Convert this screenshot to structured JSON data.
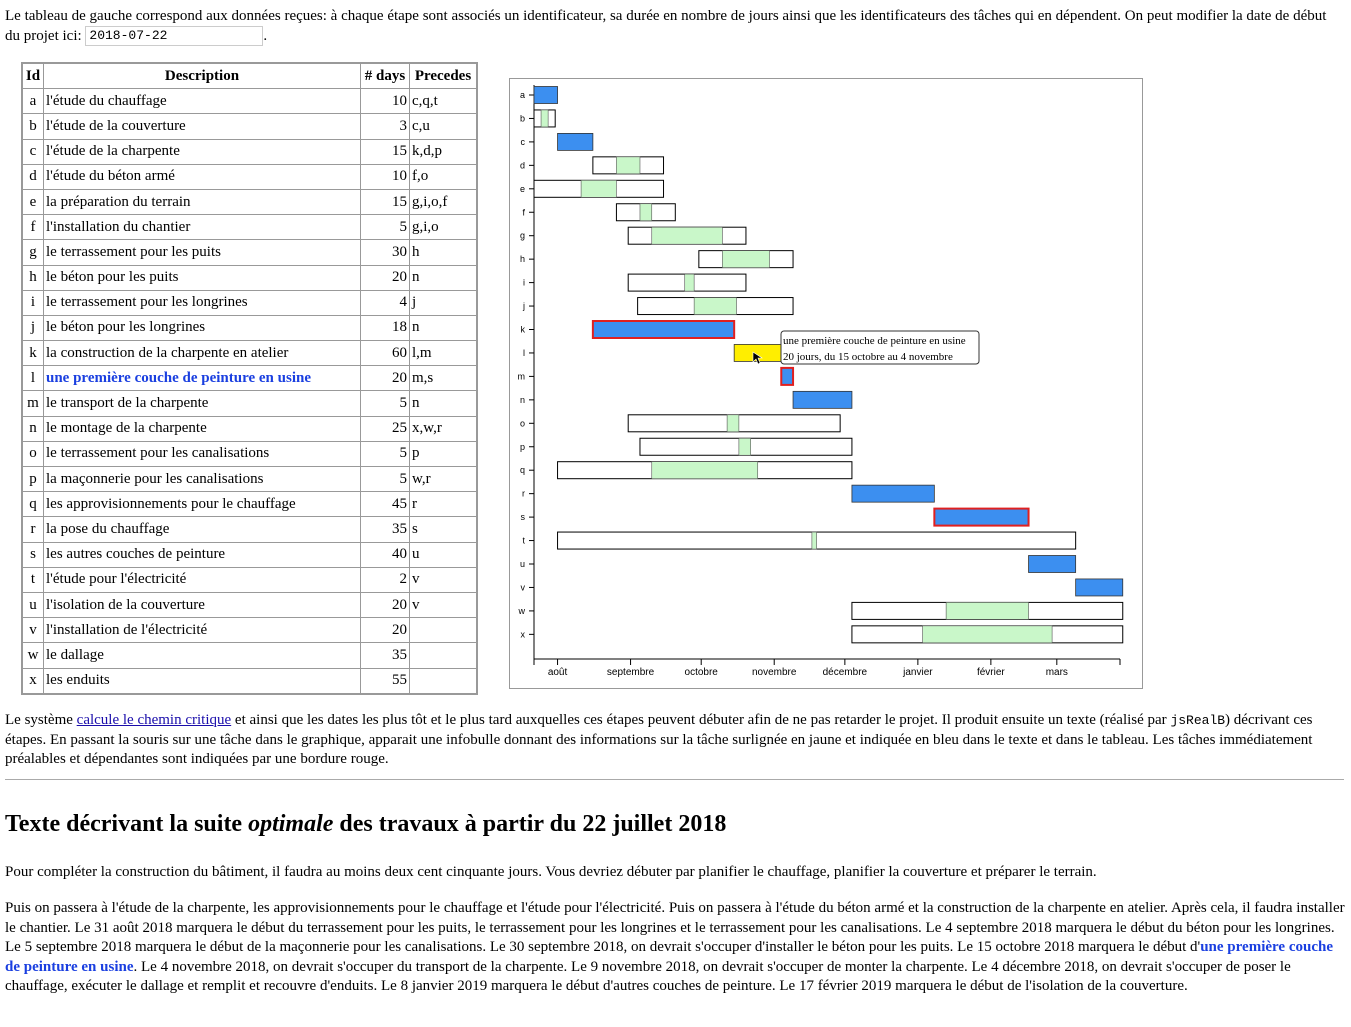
{
  "intro": {
    "text": "Le tableau de gauche correspond aux données reçues: à chaque étape sont associés un identificateur, sa durée en nombre de jours ainsi que les identificateurs des tâches qui en dépendent. On peut modifier la date de début du projet ici:",
    "start_date": "2018-07-22",
    "end": "."
  },
  "table": {
    "headers": [
      "Id",
      "Description",
      "# days",
      "Precedes"
    ],
    "rows": [
      {
        "id": "a",
        "desc": "l'étude du chauffage",
        "days": "10",
        "prec": "c,q,t"
      },
      {
        "id": "b",
        "desc": "l'étude de la couverture",
        "days": "3",
        "prec": "c,u"
      },
      {
        "id": "c",
        "desc": "l'étude de la charpente",
        "days": "15",
        "prec": "k,d,p"
      },
      {
        "id": "d",
        "desc": "l'étude du béton armé",
        "days": "10",
        "prec": "f,o"
      },
      {
        "id": "e",
        "desc": "la préparation du terrain",
        "days": "15",
        "prec": "g,i,o,f"
      },
      {
        "id": "f",
        "desc": "l'installation du chantier",
        "days": "5",
        "prec": "g,i,o"
      },
      {
        "id": "g",
        "desc": "le terrassement pour les puits",
        "days": "30",
        "prec": "h"
      },
      {
        "id": "h",
        "desc": "le béton pour les puits",
        "days": "20",
        "prec": "n"
      },
      {
        "id": "i",
        "desc": "le terrassement pour les longrines",
        "days": "4",
        "prec": "j"
      },
      {
        "id": "j",
        "desc": "le béton pour les longrines",
        "days": "18",
        "prec": "n"
      },
      {
        "id": "k",
        "desc": "la construction de la charpente en atelier",
        "days": "60",
        "prec": "l,m"
      },
      {
        "id": "l",
        "desc": "une première couche de peinture en usine",
        "days": "20",
        "prec": "m,s"
      },
      {
        "id": "m",
        "desc": "le transport de la charpente",
        "days": "5",
        "prec": "n"
      },
      {
        "id": "n",
        "desc": "le montage de la charpente",
        "days": "25",
        "prec": "x,w,r"
      },
      {
        "id": "o",
        "desc": "le terrassement pour les canalisations",
        "days": "5",
        "prec": "p"
      },
      {
        "id": "p",
        "desc": "la maçonnerie pour les canalisations",
        "days": "5",
        "prec": "w,r"
      },
      {
        "id": "q",
        "desc": "les approvisionnements pour le chauffage",
        "days": "45",
        "prec": "r"
      },
      {
        "id": "r",
        "desc": "la pose du chauffage",
        "days": "35",
        "prec": "s"
      },
      {
        "id": "s",
        "desc": "les autres couches de peinture",
        "days": "40",
        "prec": "u"
      },
      {
        "id": "t",
        "desc": "l'étude pour l'électricité",
        "days": "2",
        "prec": "v"
      },
      {
        "id": "u",
        "desc": "l'isolation de la couverture",
        "days": "20",
        "prec": "v"
      },
      {
        "id": "v",
        "desc": "l'installation de l'électricité",
        "days": "20",
        "prec": ""
      },
      {
        "id": "w",
        "desc": "le dallage",
        "days": "35",
        "prec": ""
      },
      {
        "id": "x",
        "desc": "les enduits",
        "days": "55",
        "prec": ""
      }
    ],
    "highlighted_id": "l"
  },
  "gantt": {
    "months": [
      "août",
      "septembre",
      "octobre",
      "novembre",
      "décembre",
      "janvier",
      "février",
      "mars"
    ],
    "tasks": [
      {
        "id": "a",
        "start": 0,
        "end": 10,
        "critical": true
      },
      {
        "id": "b",
        "ws": 0,
        "s": 3,
        "e": 6,
        "we": 9
      },
      {
        "id": "c",
        "start": 10,
        "end": 25,
        "critical": true
      },
      {
        "id": "d",
        "ws": 25,
        "s": 35,
        "e": 45,
        "we": 55
      },
      {
        "id": "e",
        "ws": 0,
        "s": 20,
        "e": 35,
        "we": 55
      },
      {
        "id": "f",
        "ws": 35,
        "s": 45,
        "e": 50,
        "we": 60
      },
      {
        "id": "g",
        "ws": 40,
        "s": 50,
        "e": 80,
        "we": 90
      },
      {
        "id": "h",
        "ws": 70,
        "s": 80,
        "e": 100,
        "we": 110
      },
      {
        "id": "i",
        "ws": 40,
        "s": 64,
        "e": 68,
        "we": 90
      },
      {
        "id": "j",
        "ws": 44,
        "s": 68,
        "e": 86,
        "we": 110
      },
      {
        "id": "k",
        "start": 25,
        "end": 85,
        "critical": true,
        "related": true
      },
      {
        "id": "l",
        "start": 85,
        "end": 105,
        "hover": true
      },
      {
        "id": "m",
        "start": 105,
        "end": 110,
        "critical": true,
        "related": true
      },
      {
        "id": "n",
        "start": 110,
        "end": 135,
        "critical": true
      },
      {
        "id": "o",
        "ws": 40,
        "s": 82,
        "e": 87,
        "we": 130
      },
      {
        "id": "p",
        "ws": 45,
        "s": 87,
        "e": 92,
        "we": 135
      },
      {
        "id": "q",
        "ws": 10,
        "s": 50,
        "e": 95,
        "we": 135
      },
      {
        "id": "r",
        "start": 135,
        "end": 170,
        "critical": true
      },
      {
        "id": "s",
        "start": 170,
        "end": 210,
        "critical": true,
        "related": true
      },
      {
        "id": "t",
        "ws": 10,
        "s": 118,
        "e": 120,
        "we": 230
      },
      {
        "id": "u",
        "start": 210,
        "end": 230,
        "critical": true
      },
      {
        "id": "v",
        "start": 230,
        "end": 250,
        "critical": true
      },
      {
        "id": "w",
        "ws": 135,
        "s": 175,
        "e": 210,
        "we": 250
      },
      {
        "id": "x",
        "ws": 135,
        "s": 165,
        "e": 220,
        "we": 250
      }
    ],
    "tooltip": {
      "line1": "une première couche de peinture en usine",
      "line2": "20 jours, du 15 octobre au 4 novembre"
    },
    "colors": {
      "critical": "#3c8ff0",
      "slack": "#c9f7c9",
      "hover": "#ffee00",
      "related": "#e02020"
    }
  },
  "explain": {
    "t1": "Le système ",
    "link": "calcule le chemin critique",
    "t2": " et ainsi que les dates les plus tôt et le plus tard auxquelles ces étapes peuvent débuter afin de ne pas retarder le projet. Il produit ensuite un texte (réalisé par ",
    "code": "jsRealB",
    "t3": ") décrivant ces étapes. En passant la souris sur une tâche dans le graphique, apparait une infobulle donnant des informations sur la tâche surlignée en jaune et indiquée en bleu dans le texte et dans le tableau. Les tâches immédiatement préalables et dépendantes sont indiquées par une bordure rouge."
  },
  "heading": {
    "pre": "Texte décrivant la suite ",
    "em": "optimale",
    "post": " des travaux à partir du 22 juillet 2018"
  },
  "para1": "Pour compléter la construction du bâtiment, il faudra au moins deux cent cinquante jours. Vous devriez débuter par planifier le chauffage, planifier la couverture et préparer le terrain.",
  "para2": {
    "before": "Puis on passera à l'étude de la charpente, les approvisionnements pour le chauffage et l'étude pour l'électricité. Puis on passera à l'étude du béton armé et la construction de la charpente en atelier. Après cela, il faudra installer le chantier. Le 31 août 2018 marquera le début du terrassement pour les puits, le terrassement pour les longrines et le terrassement pour les canalisations. Le 4 septembre 2018 marquera le début du béton pour les longrines. Le 5 septembre 2018 marquera le début de la maçonnerie pour les canalisations. Le 30 septembre 2018, on devrait s'occuper d'installer le béton pour les puits. Le 15 octobre 2018 marquera le début d'",
    "highlight": "une première couche de peinture en usine",
    "after": ". Le 4 novembre 2018, on devrait s'occuper du transport de la charpente. Le 9 novembre 2018, on devrait s'occuper de monter la charpente. Le 4 décembre 2018, on devrait s'occuper de poser le chauffage, exécuter le dallage et remplit et recouvre d'enduits. Le 8 janvier 2019 marquera le début d'autres couches de peinture. Le 17 février 2019 marquera le début de l'isolation de la couverture."
  }
}
